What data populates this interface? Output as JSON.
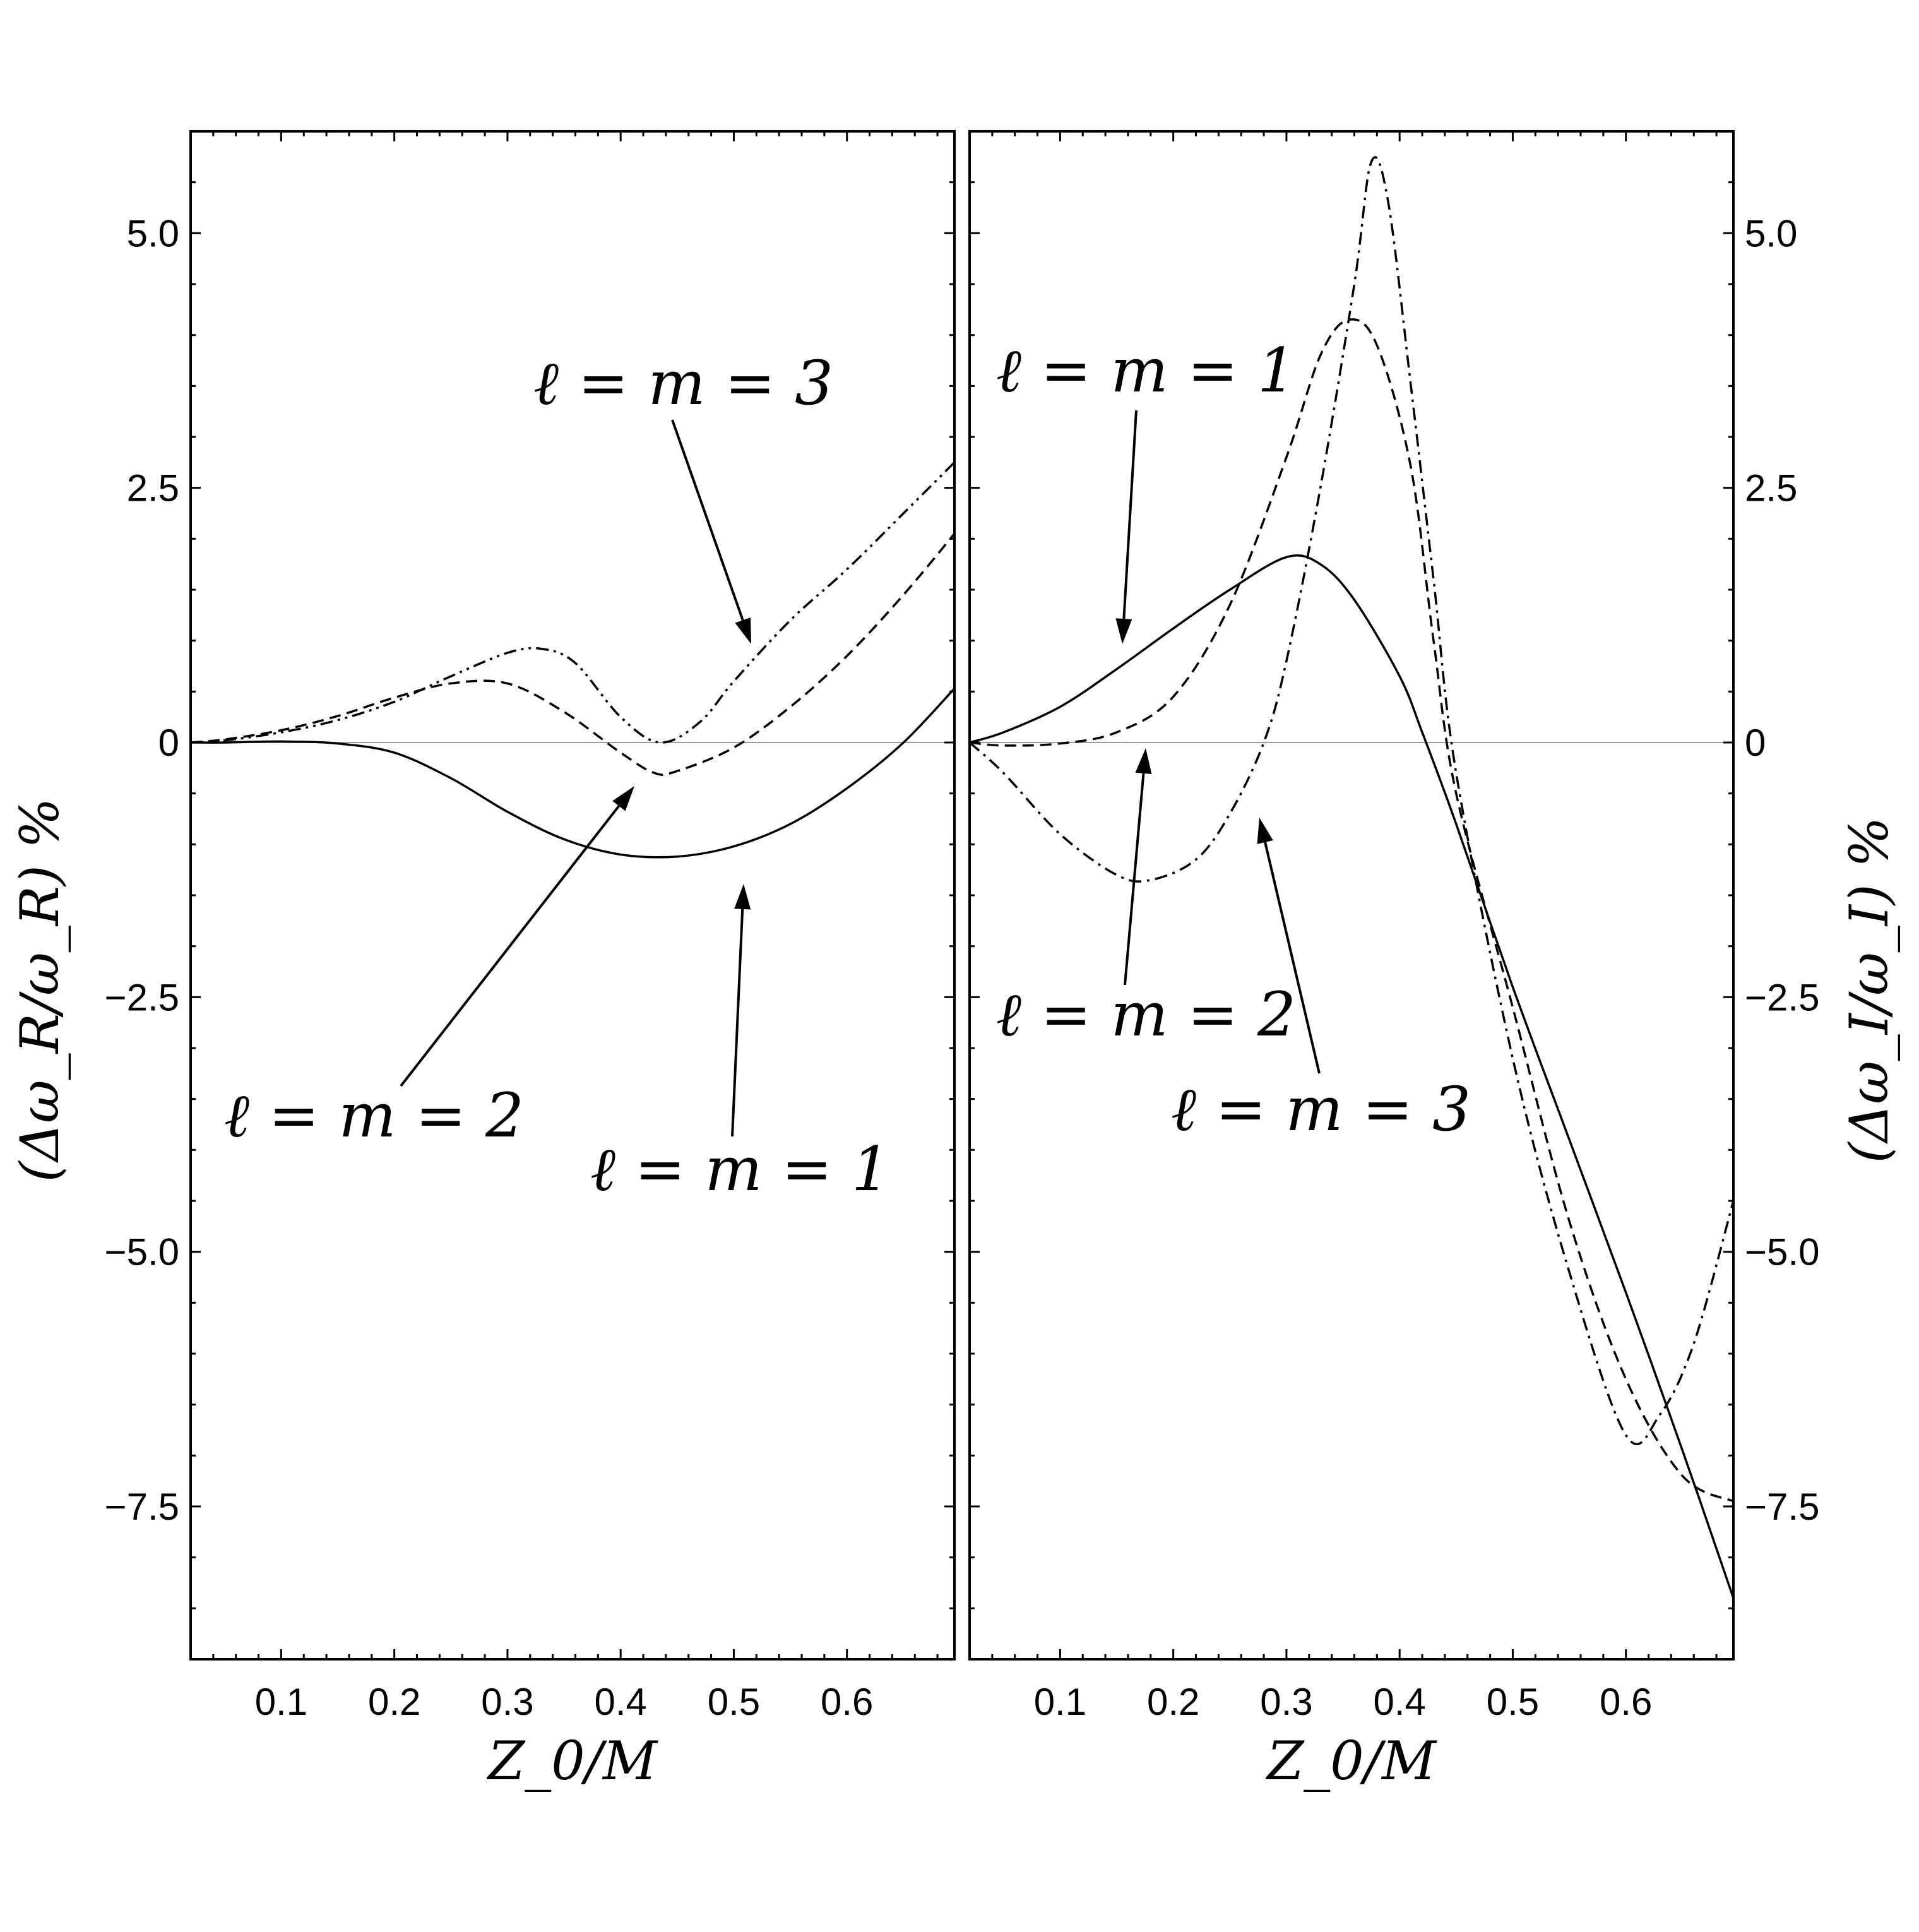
{
  "chart_data": [
    {
      "type": "line",
      "panel": "left",
      "xlabel": "Z_0/M",
      "ylabel": "(Δω_R/ω_R) %",
      "xlim": [
        0.02,
        0.695
      ],
      "ylim": [
        -9.0,
        6.0
      ],
      "x_ticks": [
        "0.1",
        "0.2",
        "0.3",
        "0.4",
        "0.5",
        "0.6"
      ],
      "y_ticks": [
        "5.0",
        "2.5",
        "0",
        "−2.5",
        "−5.0",
        "−7.5"
      ],
      "y_axis_side": "left",
      "series": [
        {
          "name": "ℓ = m = 1",
          "style": "solid",
          "points": [
            [
              0.02,
              0
            ],
            [
              0.05,
              0
            ],
            [
              0.1,
              0.01
            ],
            [
              0.15,
              -0.01
            ],
            [
              0.2,
              -0.1
            ],
            [
              0.25,
              -0.35
            ],
            [
              0.3,
              -0.68
            ],
            [
              0.35,
              -0.95
            ],
            [
              0.4,
              -1.1
            ],
            [
              0.45,
              -1.12
            ],
            [
              0.5,
              -1.02
            ],
            [
              0.55,
              -0.8
            ],
            [
              0.6,
              -0.45
            ],
            [
              0.65,
              0.0
            ],
            [
              0.695,
              0.53
            ]
          ]
        },
        {
          "name": "ℓ = m = 2",
          "style": "dashed",
          "points": [
            [
              0.02,
              0
            ],
            [
              0.05,
              0.03
            ],
            [
              0.1,
              0.12
            ],
            [
              0.15,
              0.26
            ],
            [
              0.2,
              0.44
            ],
            [
              0.25,
              0.58
            ],
            [
              0.3,
              0.58
            ],
            [
              0.35,
              0.3
            ],
            [
              0.4,
              -0.1
            ],
            [
              0.43,
              -0.3
            ],
            [
              0.45,
              -0.28
            ],
            [
              0.5,
              -0.05
            ],
            [
              0.55,
              0.35
            ],
            [
              0.6,
              0.85
            ],
            [
              0.65,
              1.45
            ],
            [
              0.695,
              2.05
            ]
          ]
        },
        {
          "name": "ℓ = m = 3",
          "style": "dash-dot-dot",
          "points": [
            [
              0.02,
              0
            ],
            [
              0.05,
              0.02
            ],
            [
              0.1,
              0.1
            ],
            [
              0.15,
              0.22
            ],
            [
              0.2,
              0.4
            ],
            [
              0.25,
              0.65
            ],
            [
              0.3,
              0.88
            ],
            [
              0.33,
              0.92
            ],
            [
              0.36,
              0.78
            ],
            [
              0.4,
              0.25
            ],
            [
              0.435,
              0.0
            ],
            [
              0.47,
              0.2
            ],
            [
              0.5,
              0.6
            ],
            [
              0.55,
              1.2
            ],
            [
              0.6,
              1.7
            ],
            [
              0.65,
              2.25
            ],
            [
              0.695,
              2.75
            ]
          ]
        }
      ],
      "annotations": [
        {
          "text": "ℓ = m = 3"
        },
        {
          "text": "ℓ = m = 2"
        },
        {
          "text": "ℓ = m = 1"
        }
      ]
    },
    {
      "type": "line",
      "panel": "right",
      "xlabel": "Z_0/M",
      "ylabel": "(Δω_I/ω_I) %",
      "xlim": [
        0.02,
        0.695
      ],
      "ylim": [
        -9.0,
        6.0
      ],
      "x_ticks": [
        "0.1",
        "0.2",
        "0.3",
        "0.4",
        "0.5",
        "0.6"
      ],
      "y_ticks": [
        "5.0",
        "2.5",
        "0",
        "−2.5",
        "−5.0",
        "−7.5"
      ],
      "y_axis_side": "right",
      "series": [
        {
          "name": "ℓ = m = 1",
          "style": "solid",
          "points": [
            [
              0.02,
              0
            ],
            [
              0.05,
              0.1
            ],
            [
              0.1,
              0.35
            ],
            [
              0.15,
              0.72
            ],
            [
              0.2,
              1.12
            ],
            [
              0.25,
              1.5
            ],
            [
              0.3,
              1.82
            ],
            [
              0.33,
              1.75
            ],
            [
              0.36,
              1.4
            ],
            [
              0.4,
              0.65
            ],
            [
              0.42,
              0.1
            ],
            [
              0.45,
              -0.8
            ],
            [
              0.5,
              -2.4
            ],
            [
              0.55,
              -3.9
            ],
            [
              0.6,
              -5.4
            ],
            [
              0.65,
              -6.95
            ],
            [
              0.695,
              -8.4
            ]
          ]
        },
        {
          "name": "ℓ = m = 2",
          "style": "dashed",
          "points": [
            [
              0.02,
              0
            ],
            [
              0.05,
              -0.03
            ],
            [
              0.1,
              -0.01
            ],
            [
              0.15,
              0.1
            ],
            [
              0.2,
              0.45
            ],
            [
              0.25,
              1.35
            ],
            [
              0.3,
              2.8
            ],
            [
              0.33,
              3.8
            ],
            [
              0.355,
              4.15
            ],
            [
              0.38,
              3.9
            ],
            [
              0.41,
              2.7
            ],
            [
              0.43,
              1.0
            ],
            [
              0.45,
              -0.5
            ],
            [
              0.5,
              -2.6
            ],
            [
              0.55,
              -4.7
            ],
            [
              0.6,
              -6.25
            ],
            [
              0.65,
              -7.2
            ],
            [
              0.695,
              -7.45
            ]
          ]
        },
        {
          "name": "ℓ = m = 3",
          "style": "dash-dot",
          "points": [
            [
              0.02,
              0
            ],
            [
              0.05,
              -0.3
            ],
            [
              0.1,
              -0.9
            ],
            [
              0.15,
              -1.3
            ],
            [
              0.18,
              -1.35
            ],
            [
              0.22,
              -1.15
            ],
            [
              0.25,
              -0.7
            ],
            [
              0.28,
              0.0
            ],
            [
              0.3,
              0.8
            ],
            [
              0.33,
              2.5
            ],
            [
              0.36,
              4.5
            ],
            [
              0.375,
              5.7
            ],
            [
              0.39,
              5.3
            ],
            [
              0.41,
              3.5
            ],
            [
              0.43,
              1.6
            ],
            [
              0.45,
              -0.3
            ],
            [
              0.5,
              -3.1
            ],
            [
              0.55,
              -5.2
            ],
            [
              0.6,
              -6.8
            ],
            [
              0.63,
              -6.6
            ],
            [
              0.66,
              -5.9
            ],
            [
              0.695,
              -4.5
            ]
          ]
        }
      ],
      "annotations": [
        {
          "text": "ℓ = m = 1"
        },
        {
          "text": "ℓ = m = 2"
        },
        {
          "text": "ℓ = m = 3"
        }
      ]
    }
  ]
}
